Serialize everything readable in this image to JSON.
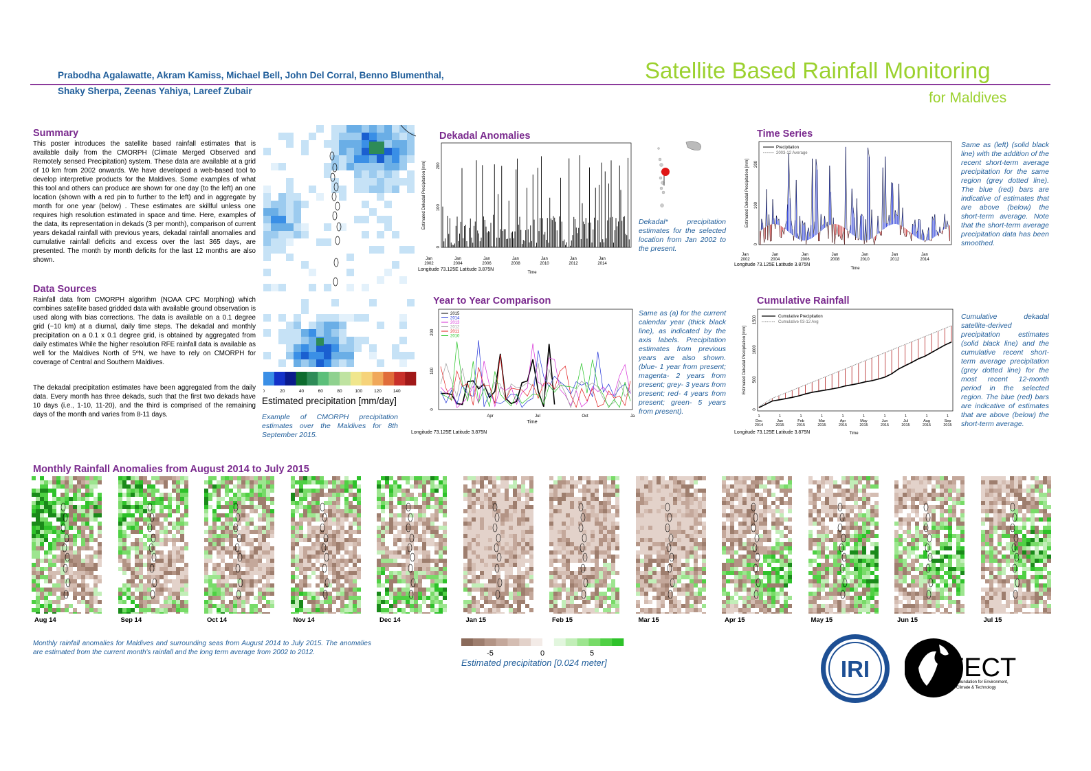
{
  "header": {
    "authors_line1": "Prabodha Agalawatte, Akram Kamiss, Michael Bell, John Del Corral, Benno Blumenthal,",
    "authors_line2": "Shaky Sherpa, Zeenas Yahiya, Lareef Zubair",
    "title": "Satellite Based Rainfall Monitoring",
    "subtitle": "for Maldives"
  },
  "summary": {
    "heading": "Summary",
    "text": "This poster introduces the satellite based rainfall estimates that is available daily from the CMORPH (Climate Merged Observed and Remotely sensed Precipitation) system. These data are available at a grid of 10 km from 2002 onwards. We have developed a web-based tool to develop interpretive products for the Maldives. Some examples of what this tool and others can produce are shown for one day (to the left) an one location (shown with a red pin to further to the left) and in aggregate by month for one year (below) . These estimates are skillful unless one requires high resolution estimated in space and time. Here, examples of the data, its representation in dekads (3 per month), comparison of current years dekadal rainfall with previous years, dekadal rainfall anomalies and cumulative rainfall deficits and excess over the last 365 days, are presented. The month by month deficits for the last 12 months are also shown."
  },
  "data_sources": {
    "heading": "Data Sources",
    "text1": "Rainfall data from CMORPH algorithm (NOAA CPC Morphing) which combines satellite based gridded data with available ground observation is used along with bias corrections.  The data is available on a 0.1 degree grid (~10 km) at a diurnal, daily time steps. The dekadal and monthly precipitation on a 0.1 x 0.1 degree grid, is obtained by aggregated from daily estimates While the higher resolution RFE rainfall data is available as well for the Maldives North of 5ºN, we have to rely on CMORPH for coverage of Central and Southern Maldives.",
    "text2": "The dekadal precipitation estimates have been aggregated from the daily data. Every month has three dekads, such that the first two dekads have 10 days (i.e., 1-10, 11-20), and the third is comprised of the remaining days of the month and varies from 8-11 days."
  },
  "map_panel": {
    "colorbar_ticks": [
      "0",
      "20",
      "40",
      "60",
      "80",
      "100",
      "120",
      "140"
    ],
    "colorbar_colors": [
      "#3a8fe6",
      "#1432c8",
      "#0a1a8c",
      "#0d6b2e",
      "#2e8b57",
      "#5cbf7a",
      "#8fd18f",
      "#bfe3a1",
      "#f0e68c",
      "#f6d37a",
      "#f0a85a",
      "#e06c3a",
      "#c8302a",
      "#a01818"
    ],
    "colorbar_label": "Estimated precipitation [mm/day]",
    "caption": "Example of CMORPH precipitation estimates over the Maldives for 8th September 2015."
  },
  "dekadal_anomalies": {
    "heading": "Dekadal Anomalies",
    "ylabel": "Estimated Dekadal Precipitation [mm]",
    "yticks": [
      "0",
      "100",
      "200"
    ],
    "xticks": [
      [
        "Jan",
        "2002"
      ],
      [
        "Jan",
        "2004"
      ],
      [
        "Jan",
        "2006"
      ],
      [
        "Jan",
        "2008"
      ],
      [
        "Jan",
        "2010"
      ],
      [
        "Jan",
        "2012"
      ],
      [
        "Jan",
        "2014"
      ]
    ],
    "xlabel": "Time",
    "location": "Longitude 73.125E Latitude 3.875N",
    "caption": "Dekadal* precipitation estimates for the selected location from Jan 2002 to the present."
  },
  "time_series": {
    "heading": "Time Series",
    "legend": [
      "Precipitation",
      "2003-12 Average"
    ],
    "ylabel": "Estimated Dekadal Precipitation [mm]",
    "yticks": [
      "0",
      "100",
      "200"
    ],
    "xticks": [
      [
        "Jan",
        "2002"
      ],
      [
        "Jan",
        "2004"
      ],
      [
        "Jan",
        "2006"
      ],
      [
        "Jan",
        "2008"
      ],
      [
        "Jan",
        "2010"
      ],
      [
        "Jan",
        "2012"
      ],
      [
        "Jan",
        "2014"
      ]
    ],
    "xlabel": "Time",
    "location": "Longitude 73.125E Latitude 3.875N",
    "caption": "Same as (left) (solid black line) with the addition of the recent short-term average precipitation for the same region (grey dotted line). The blue (red) bars are indicative of estimates that are above (below) the short-term average. Note that the short-term average precipitation data has been smoothed."
  },
  "year_to_year": {
    "heading": "Year to Year Comparison",
    "legend": [
      {
        "label": "2015",
        "color": "#000000"
      },
      {
        "label": "2014",
        "color": "#1c2fd6"
      },
      {
        "label": "2013",
        "color": "#d62ad6"
      },
      {
        "label": "2012",
        "color": "#9a9a9a"
      },
      {
        "label": "2011",
        "color": "#e01a1a"
      },
      {
        "label": "2010",
        "color": "#22c322"
      }
    ],
    "yticks": [
      "0",
      "100",
      "200"
    ],
    "xticks": [
      "Apr",
      "Jul",
      "Oct",
      "Ja"
    ],
    "xlabel": "Time",
    "location": "Longitude 73.125E Latitude 3.875N",
    "caption": "Same as (a) for the current calendar year (thick black line), as indicated by the axis labels. Precipitation estimates from previous years are also shown. (blue- 1 year from present; magenta- 2 years from present; grey- 3 years from present; red- 4 years from present; green- 5 years from present)."
  },
  "cumulative": {
    "heading": "Cumulative Rainfall",
    "legend": [
      "Cumulative Precipitation",
      "Cumulative 03-12 Avg"
    ],
    "ylabel": "Estimated Dekadal Precipitation [mm]",
    "yticks": [
      "0",
      "500",
      "1000",
      "1500"
    ],
    "xticks": [
      [
        "Dec",
        "2014"
      ],
      [
        "Jan",
        "2015"
      ],
      [
        "Feb",
        "2015"
      ],
      [
        "Mar",
        "2015"
      ],
      [
        "Apr",
        "2015"
      ],
      [
        "May",
        "2015"
      ],
      [
        "Jun",
        "2015"
      ],
      [
        "Jul",
        "2015"
      ],
      [
        "Aug",
        "2015"
      ],
      [
        "Sep",
        "2015"
      ]
    ],
    "tick_day": "1",
    "xlabel": "Time",
    "location": "Longitude 73.125E Latitude 3.875N",
    "caption": "Cumulative dekadal satellite-derived precipitation estimates (solid black line) and the cumulative recent short-term average precipitation (grey dotted line) for the most recent 12-month period in the selected region. The blue (red) bars are indicative of estimates that are above (below) the short-term average."
  },
  "monthly": {
    "heading": "Monthly Rainfall Anomalies from August 2014 to July 2015",
    "months": [
      {
        "label": "Aug 14",
        "wet": 0.55
      },
      {
        "label": "Sep 14",
        "wet": 0.5
      },
      {
        "label": "Oct 14",
        "wet": 0.4
      },
      {
        "label": "Nov 14",
        "wet": 0.4
      },
      {
        "label": "Dec 14",
        "wet": 0.5
      },
      {
        "label": "Jan 15",
        "wet": 0.05
      },
      {
        "label": "Feb 15",
        "wet": 0.1
      },
      {
        "label": "Mar 15",
        "wet": 0.05
      },
      {
        "label": "Apr 15",
        "wet": 0.35
      },
      {
        "label": "May 15",
        "wet": 0.45
      },
      {
        "label": "Jun 15",
        "wet": 0.4
      },
      {
        "label": "Jul 15",
        "wet": 0.35
      }
    ],
    "caption": "Monthly rainfall anomalies for Maldives and surrounding seas from August 2014 to July 2015. The anomalies are estimated from the current month's rainfall and the long term average from 2002 to 2012.",
    "colorbar_ticks": [
      "-5",
      "0",
      "5"
    ],
    "colorbar_colors": [
      "#8a6a5a",
      "#9e7e6e",
      "#b39485",
      "#c4a89b",
      "#d4bdb2",
      "#e3d2ca",
      "#f3ebe7",
      "#ffffff",
      "#e2f6de",
      "#c2eeb8",
      "#9de58f",
      "#78db68",
      "#4fd044",
      "#2ec22a"
    ],
    "colorbar_label": "Estimated precipitation [0.024 meter]"
  },
  "logos": {
    "iri": "IRI",
    "fect": "FECT",
    "fect_sub1": "Foundation for Environment,",
    "fect_sub2": "Climate & Technology"
  }
}
